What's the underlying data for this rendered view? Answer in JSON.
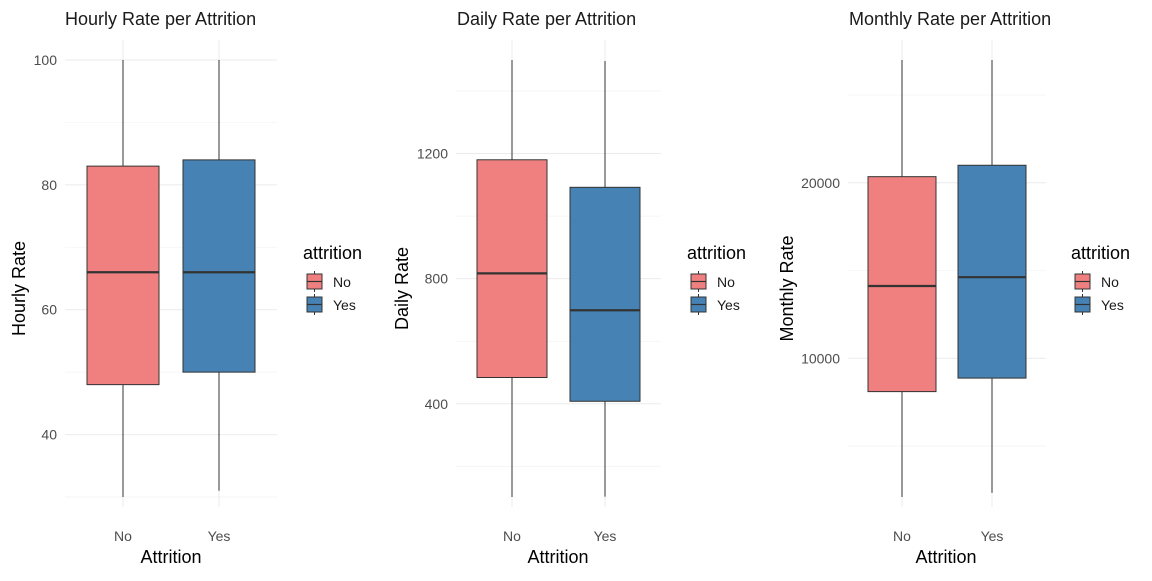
{
  "chart_data": [
    {
      "type": "boxplot",
      "title": "Hourly Rate per Attrition",
      "xlabel": "Attrition",
      "ylabel": "Hourly Rate",
      "categories": [
        "No",
        "Yes"
      ],
      "ylim": [
        30,
        100
      ],
      "yticks": [
        40,
        60,
        80,
        100
      ],
      "ytick_labels": [
        "40",
        "60",
        "80",
        "100"
      ],
      "boxes": [
        {
          "category": "No",
          "min": 30,
          "q1": 48,
          "median": 66,
          "q3": 83,
          "max": 100,
          "fill": "#F08080"
        },
        {
          "category": "Yes",
          "min": 31,
          "q1": 50,
          "median": 66,
          "q3": 84,
          "max": 100,
          "fill": "#4682B4"
        }
      ],
      "legend": {
        "title": "attrition",
        "entries": [
          {
            "label": "No",
            "color": "#F08080"
          },
          {
            "label": "Yes",
            "color": "#4682B4"
          }
        ],
        "position": "right"
      },
      "grid": true
    },
    {
      "type": "boxplot",
      "title": "Daily Rate per Attrition",
      "xlabel": "Attrition",
      "ylabel": "Daily Rate",
      "categories": [
        "No",
        "Yes"
      ],
      "ylim": [
        102,
        1499
      ],
      "yticks": [
        400,
        800,
        1200
      ],
      "ytick_labels": [
        "400",
        "800",
        "1200"
      ],
      "boxes": [
        {
          "category": "No",
          "min": 102,
          "q1": 484,
          "median": 817,
          "q3": 1180,
          "max": 1499,
          "fill": "#F08080"
        },
        {
          "category": "Yes",
          "min": 103,
          "q1": 408,
          "median": 699,
          "q3": 1092,
          "max": 1496,
          "fill": "#4682B4"
        }
      ],
      "legend": {
        "title": "attrition",
        "entries": [
          {
            "label": "No",
            "color": "#F08080"
          },
          {
            "label": "Yes",
            "color": "#4682B4"
          }
        ],
        "position": "right"
      },
      "grid": true
    },
    {
      "type": "boxplot",
      "title": "Monthly Rate per Attrition",
      "xlabel": "Attrition",
      "ylabel": "Monthly Rate",
      "categories": [
        "No",
        "Yes"
      ],
      "ylim": [
        2094,
        26999
      ],
      "yticks": [
        10000,
        20000
      ],
      "ytick_labels": [
        "10000",
        "20000"
      ],
      "boxes": [
        {
          "category": "No",
          "min": 2094,
          "q1": 8100,
          "median": 14120,
          "q3": 20350,
          "max": 26999,
          "fill": "#F08080"
        },
        {
          "category": "Yes",
          "min": 2326,
          "q1": 8870,
          "median": 14620,
          "q3": 21000,
          "max": 26999,
          "fill": "#4682B4"
        }
      ],
      "legend": {
        "title": "attrition",
        "entries": [
          {
            "label": "No",
            "color": "#F08080"
          },
          {
            "label": "Yes",
            "color": "#4682B4"
          }
        ],
        "position": "right"
      },
      "grid": true
    }
  ]
}
